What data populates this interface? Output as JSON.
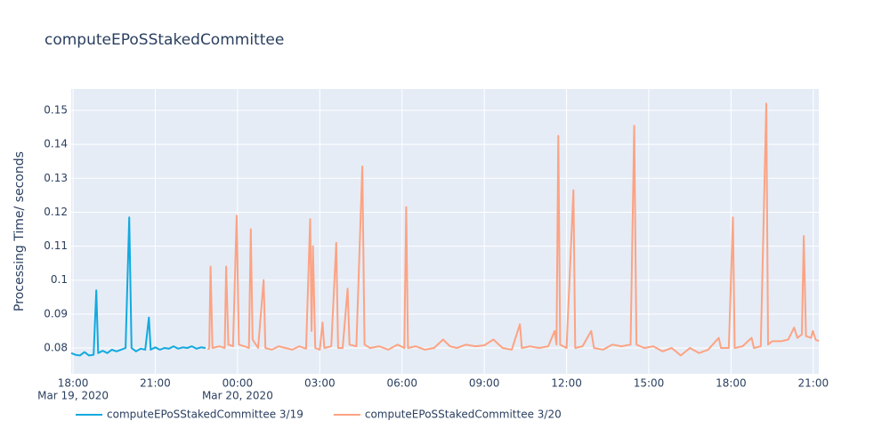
{
  "chart_data": {
    "type": "line",
    "title": "computeEPoSStakedCommittee",
    "y_label": "Processing Time/ seconds",
    "xlim": [
      "2020-03-19 17:56",
      "2020-03-20 21:12"
    ],
    "ylim": [
      0.0724,
      0.1563
    ],
    "yticks": [
      0.08,
      0.09,
      0.1,
      0.11,
      0.12,
      0.13,
      0.14,
      0.15
    ],
    "xticks": [
      {
        "value": "2020-03-19 18:00",
        "label": "18:00"
      },
      {
        "value": "2020-03-19 21:00",
        "label": "21:00"
      },
      {
        "value": "2020-03-20 00:00",
        "label": "00:00"
      },
      {
        "value": "2020-03-20 03:00",
        "label": "03:00"
      },
      {
        "value": "2020-03-20 06:00",
        "label": "06:00"
      },
      {
        "value": "2020-03-20 09:00",
        "label": "09:00"
      },
      {
        "value": "2020-03-20 12:00",
        "label": "12:00"
      },
      {
        "value": "2020-03-20 15:00",
        "label": "15:00"
      },
      {
        "value": "2020-03-20 18:00",
        "label": "18:00"
      },
      {
        "value": "2020-03-20 21:00",
        "label": "21:00"
      }
    ],
    "xtick_dates": [
      {
        "value": "2020-03-19 18:00",
        "label": "Mar 19, 2020"
      },
      {
        "value": "2020-03-20 00:00",
        "label": "Mar 20, 2020"
      }
    ],
    "grid": true,
    "legend": "bottom-left",
    "series": [
      {
        "name": "computeEPoSStakedCommittee 3/19",
        "color": "#12a9df",
        "x": [
          "2020-03-19 17:56",
          "2020-03-19 18:05",
          "2020-03-19 18:15",
          "2020-03-19 18:25",
          "2020-03-19 18:35",
          "2020-03-19 18:45",
          "2020-03-19 18:51",
          "2020-03-19 18:55",
          "2020-03-19 19:05",
          "2020-03-19 19:15",
          "2020-03-19 19:25",
          "2020-03-19 19:35",
          "2020-03-19 19:45",
          "2020-03-19 19:55",
          "2020-03-19 20:03",
          "2020-03-19 20:08",
          "2020-03-19 20:18",
          "2020-03-19 20:28",
          "2020-03-19 20:38",
          "2020-03-19 20:46",
          "2020-03-19 20:50",
          "2020-03-19 21:00",
          "2020-03-19 21:10",
          "2020-03-19 21:20",
          "2020-03-19 21:30",
          "2020-03-19 21:40",
          "2020-03-19 21:50",
          "2020-03-19 22:00",
          "2020-03-19 22:10",
          "2020-03-19 22:20",
          "2020-03-19 22:30",
          "2020-03-19 22:40",
          "2020-03-19 22:50"
        ],
        "values": [
          0.0785,
          0.078,
          0.0778,
          0.0788,
          0.0778,
          0.078,
          0.097,
          0.0785,
          0.0792,
          0.0785,
          0.0795,
          0.079,
          0.0795,
          0.08,
          0.1185,
          0.08,
          0.079,
          0.0798,
          0.0795,
          0.089,
          0.0795,
          0.0802,
          0.0795,
          0.08,
          0.0798,
          0.0805,
          0.0798,
          0.0802,
          0.08,
          0.0805,
          0.0798,
          0.0802,
          0.08
        ]
      },
      {
        "name": "computeEPoSStakedCommittee 3/20",
        "color": "#fca383",
        "x": [
          "2020-03-19 22:55",
          "2020-03-19 22:58",
          "2020-03-19 23:01",
          "2020-03-19 23:05",
          "2020-03-19 23:20",
          "2020-03-19 23:32",
          "2020-03-19 23:35",
          "2020-03-19 23:40",
          "2020-03-19 23:50",
          "2020-03-19 23:58",
          "2020-03-20 00:03",
          "2020-03-20 00:15",
          "2020-03-20 00:25",
          "2020-03-20 00:29",
          "2020-03-20 00:33",
          "2020-03-20 00:45",
          "2020-03-20 00:57",
          "2020-03-20 01:01",
          "2020-03-20 01:15",
          "2020-03-20 01:30",
          "2020-03-20 01:45",
          "2020-03-20 02:00",
          "2020-03-20 02:15",
          "2020-03-20 02:30",
          "2020-03-20 02:39",
          "2020-03-20 02:42",
          "2020-03-20 02:45",
          "2020-03-20 02:50",
          "2020-03-20 03:00",
          "2020-03-20 03:06",
          "2020-03-20 03:10",
          "2020-03-20 03:25",
          "2020-03-20 03:36",
          "2020-03-20 03:40",
          "2020-03-20 03:50",
          "2020-03-20 04:01",
          "2020-03-20 04:05",
          "2020-03-20 04:20",
          "2020-03-20 04:33",
          "2020-03-20 04:38",
          "2020-03-20 04:50",
          "2020-03-20 05:10",
          "2020-03-20 05:30",
          "2020-03-20 05:50",
          "2020-03-20 06:05",
          "2020-03-20 06:09",
          "2020-03-20 06:13",
          "2020-03-20 06:30",
          "2020-03-20 06:50",
          "2020-03-20 07:10",
          "2020-03-20 07:30",
          "2020-03-20 07:45",
          "2020-03-20 08:00",
          "2020-03-20 08:20",
          "2020-03-20 08:40",
          "2020-03-20 09:00",
          "2020-03-20 09:20",
          "2020-03-20 09:40",
          "2020-03-20 10:00",
          "2020-03-20 10:18",
          "2020-03-20 10:22",
          "2020-03-20 10:40",
          "2020-03-20 11:00",
          "2020-03-20 11:20",
          "2020-03-20 11:34",
          "2020-03-20 11:38",
          "2020-03-20 11:42",
          "2020-03-20 11:46",
          "2020-03-20 12:00",
          "2020-03-20 12:15",
          "2020-03-20 12:19",
          "2020-03-20 12:35",
          "2020-03-20 12:54",
          "2020-03-20 13:00",
          "2020-03-20 13:20",
          "2020-03-20 13:40",
          "2020-03-20 14:00",
          "2020-03-20 14:20",
          "2020-03-20 14:28",
          "2020-03-20 14:33",
          "2020-03-20 14:50",
          "2020-03-20 15:10",
          "2020-03-20 15:30",
          "2020-03-20 15:50",
          "2020-03-20 16:10",
          "2020-03-20 16:30",
          "2020-03-20 16:50",
          "2020-03-20 17:10",
          "2020-03-20 17:33",
          "2020-03-20 17:38",
          "2020-03-20 17:55",
          "2020-03-20 18:04",
          "2020-03-20 18:08",
          "2020-03-20 18:25",
          "2020-03-20 18:45",
          "2020-03-20 18:50",
          "2020-03-20 19:05",
          "2020-03-20 19:17",
          "2020-03-20 19:21",
          "2020-03-20 19:30",
          "2020-03-20 19:44",
          "2020-03-20 19:50",
          "2020-03-20 20:05",
          "2020-03-20 20:18",
          "2020-03-20 20:25",
          "2020-03-20 20:35",
          "2020-03-20 20:39",
          "2020-03-20 20:44",
          "2020-03-20 20:55",
          "2020-03-20 20:59",
          "2020-03-20 21:05",
          "2020-03-20 21:12"
        ],
        "values": [
          0.0795,
          0.08,
          0.104,
          0.08,
          0.0805,
          0.08,
          0.104,
          0.081,
          0.0805,
          0.119,
          0.081,
          0.0805,
          0.08,
          0.115,
          0.0825,
          0.08,
          0.1,
          0.08,
          0.0795,
          0.0805,
          0.08,
          0.0795,
          0.0805,
          0.0798,
          0.118,
          0.085,
          0.11,
          0.08,
          0.0795,
          0.0875,
          0.08,
          0.0805,
          0.111,
          0.08,
          0.08,
          0.0975,
          0.081,
          0.0805,
          0.1335,
          0.081,
          0.08,
          0.0805,
          0.0795,
          0.081,
          0.08,
          0.1215,
          0.08,
          0.0805,
          0.0795,
          0.08,
          0.0825,
          0.0805,
          0.08,
          0.081,
          0.0805,
          0.0808,
          0.0825,
          0.08,
          0.0795,
          0.087,
          0.08,
          0.0805,
          0.08,
          0.0805,
          0.085,
          0.081,
          0.1425,
          0.081,
          0.08,
          0.1265,
          0.08,
          0.0805,
          0.085,
          0.08,
          0.0795,
          0.081,
          0.0805,
          0.081,
          0.1455,
          0.081,
          0.08,
          0.0805,
          0.079,
          0.08,
          0.0778,
          0.08,
          0.0785,
          0.0795,
          0.083,
          0.08,
          0.08,
          0.1185,
          0.08,
          0.0805,
          0.083,
          0.08,
          0.0805,
          0.152,
          0.081,
          0.082,
          0.082,
          0.082,
          0.0825,
          0.086,
          0.083,
          0.084,
          0.113,
          0.0835,
          0.083,
          0.085,
          0.0825,
          0.082
        ]
      }
    ]
  }
}
